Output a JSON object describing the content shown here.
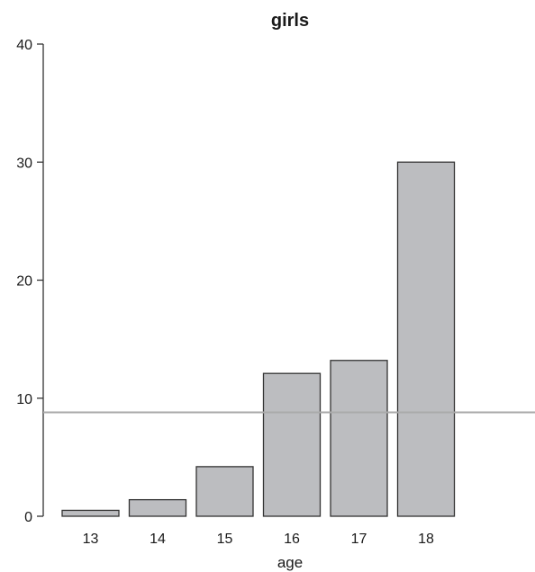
{
  "chart_data": {
    "type": "bar",
    "title": "girls",
    "xlabel": "age",
    "ylabel": "",
    "categories": [
      "13",
      "14",
      "15",
      "16",
      "17",
      "18"
    ],
    "values": [
      0.5,
      1.4,
      4.2,
      12.1,
      13.2,
      30
    ],
    "ylim": [
      0,
      40
    ],
    "yticks": [
      "0",
      "10",
      "20",
      "30",
      "40"
    ],
    "reference_line": 8.8,
    "grid": false,
    "colors": {
      "bar_fill": "#bcbdc0",
      "bar_stroke": "#333333",
      "axis": "#333333",
      "reference_line": "#aaaaaa"
    }
  }
}
